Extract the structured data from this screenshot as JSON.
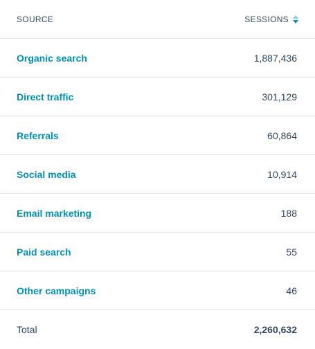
{
  "header": {
    "source_label": "SOURCE",
    "sessions_label": "SESSIONS"
  },
  "colors": {
    "link": "#0091ae",
    "text": "#33475b",
    "divider": "#dfe3eb",
    "sort_active": "#0091ae",
    "sort_inactive": "#7fd1de"
  },
  "rows": [
    {
      "source": "Organic search",
      "sessions": "1,887,436"
    },
    {
      "source": "Direct traffic",
      "sessions": "301,129"
    },
    {
      "source": "Referrals",
      "sessions": "60,864"
    },
    {
      "source": "Social media",
      "sessions": "10,914"
    },
    {
      "source": "Email marketing",
      "sessions": "188"
    },
    {
      "source": "Paid search",
      "sessions": "55"
    },
    {
      "source": "Other campaigns",
      "sessions": "46"
    }
  ],
  "total": {
    "label": "Total",
    "sessions": "2,260,632"
  }
}
